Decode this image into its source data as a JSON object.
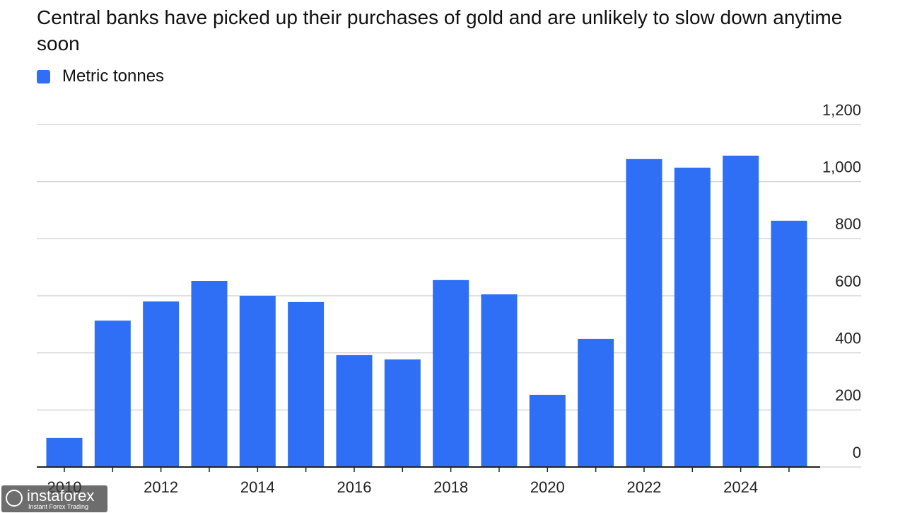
{
  "chart_data": {
    "type": "bar",
    "title": "Central banks have picked up their purchases of gold and are unlikely to slow down anytime soon",
    "categories": [
      "2010",
      null,
      "2012",
      null,
      "2014",
      null,
      "2016",
      null,
      "2018",
      null,
      "2020",
      null,
      "2022",
      null,
      "2024",
      null
    ],
    "series": [
      {
        "name": "Metric tonnes",
        "color": "#2f6ff5",
        "values": [
          102,
          513,
          580,
          652,
          600,
          578,
          392,
          377,
          655,
          605,
          253,
          449,
          1079,
          1049,
          1091,
          863
        ]
      }
    ],
    "ylim": [
      0,
      1200
    ],
    "yticks": [
      0,
      200,
      400,
      600,
      800,
      {
        "value": 1000,
        "label": "1,000"
      },
      {
        "value": 1200,
        "label": "1,200"
      }
    ],
    "grid": true,
    "y_axis_side": "right"
  },
  "watermark": {
    "brand": "instaforex",
    "tagline": "Instant Forex Trading"
  }
}
